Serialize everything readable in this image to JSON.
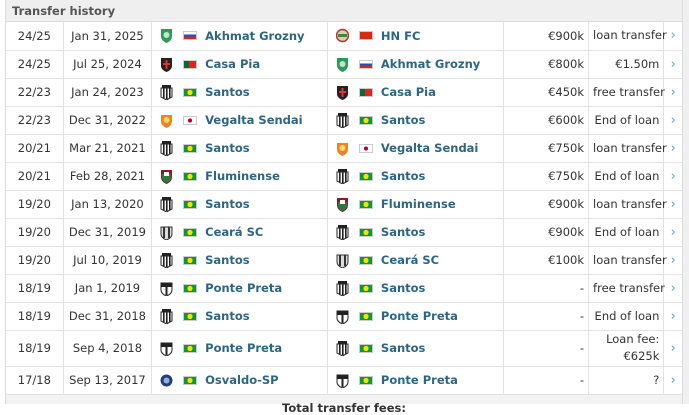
{
  "title": "Transfer history",
  "footer_label": "Total transfer fees:",
  "colors": {
    "link": "#2d6585",
    "arrow": "#4aa5d8",
    "header_bg": "#efefef"
  },
  "rows": [
    {
      "season": "24/25",
      "date": "Jan 31, 2025",
      "from": {
        "name": "Akhmat Grozny",
        "logo": "akhmat",
        "flag": "ru"
      },
      "to": {
        "name": "HN FC",
        "logo": "hnfc",
        "flag": "cn"
      },
      "mv": "€900k",
      "fee": "loan transfer"
    },
    {
      "season": "24/25",
      "date": "Jul 25, 2024",
      "from": {
        "name": "Casa Pia",
        "logo": "casapia",
        "flag": "pt"
      },
      "to": {
        "name": "Akhmat Grozny",
        "logo": "akhmat",
        "flag": "ru"
      },
      "mv": "€800k",
      "fee": "€1.50m"
    },
    {
      "season": "22/23",
      "date": "Jan 24, 2023",
      "from": {
        "name": "Santos",
        "logo": "santos",
        "flag": "br"
      },
      "to": {
        "name": "Casa Pia",
        "logo": "casapia",
        "flag": "pt"
      },
      "mv": "€450k",
      "fee": "free transfer"
    },
    {
      "season": "22/23",
      "date": "Dec 31, 2022",
      "from": {
        "name": "Vegalta Sendai",
        "logo": "vegalta",
        "flag": "jp"
      },
      "to": {
        "name": "Santos",
        "logo": "santos",
        "flag": "br"
      },
      "mv": "€600k",
      "fee": "End of loan"
    },
    {
      "season": "20/21",
      "date": "Mar 21, 2021",
      "from": {
        "name": "Santos",
        "logo": "santos",
        "flag": "br"
      },
      "to": {
        "name": "Vegalta Sendai",
        "logo": "vegalta",
        "flag": "jp"
      },
      "mv": "€750k",
      "fee": "loan transfer"
    },
    {
      "season": "20/21",
      "date": "Feb 28, 2021",
      "from": {
        "name": "Fluminense",
        "logo": "fluminense",
        "flag": "br"
      },
      "to": {
        "name": "Santos",
        "logo": "santos",
        "flag": "br"
      },
      "mv": "€750k",
      "fee": "End of loan"
    },
    {
      "season": "19/20",
      "date": "Jan 13, 2020",
      "from": {
        "name": "Santos",
        "logo": "santos",
        "flag": "br"
      },
      "to": {
        "name": "Fluminense",
        "logo": "fluminense",
        "flag": "br"
      },
      "mv": "€900k",
      "fee": "loan transfer"
    },
    {
      "season": "19/20",
      "date": "Dec 31, 2019",
      "from": {
        "name": "Ceará SC",
        "logo": "ceara",
        "flag": "br"
      },
      "to": {
        "name": "Santos",
        "logo": "santos",
        "flag": "br"
      },
      "mv": "€900k",
      "fee": "End of loan"
    },
    {
      "season": "19/20",
      "date": "Jul 10, 2019",
      "from": {
        "name": "Santos",
        "logo": "santos",
        "flag": "br"
      },
      "to": {
        "name": "Ceará SC",
        "logo": "ceara",
        "flag": "br"
      },
      "mv": "€100k",
      "fee": "loan transfer"
    },
    {
      "season": "18/19",
      "date": "Jan 1, 2019",
      "from": {
        "name": "Ponte Preta",
        "logo": "pontepreta",
        "flag": "br"
      },
      "to": {
        "name": "Santos",
        "logo": "santos",
        "flag": "br"
      },
      "mv": "-",
      "fee": "free transfer"
    },
    {
      "season": "18/19",
      "date": "Dec 31, 2018",
      "from": {
        "name": "Santos",
        "logo": "santos",
        "flag": "br"
      },
      "to": {
        "name": "Ponte Preta",
        "logo": "pontepreta",
        "flag": "br"
      },
      "mv": "-",
      "fee": "End of loan"
    },
    {
      "season": "18/19",
      "date": "Sep 4, 2018",
      "from": {
        "name": "Ponte Preta",
        "logo": "pontepreta",
        "flag": "br"
      },
      "to": {
        "name": "Santos",
        "logo": "santos",
        "flag": "br"
      },
      "mv": "-",
      "fee": "Loan fee:",
      "fee2": "€625k"
    },
    {
      "season": "17/18",
      "date": "Sep 13, 2017",
      "from": {
        "name": "Osvaldo-SP",
        "logo": "osvaldo",
        "flag": "br"
      },
      "to": {
        "name": "Ponte Preta",
        "logo": "pontepreta",
        "flag": "br"
      },
      "mv": "-",
      "fee": "?"
    }
  ]
}
